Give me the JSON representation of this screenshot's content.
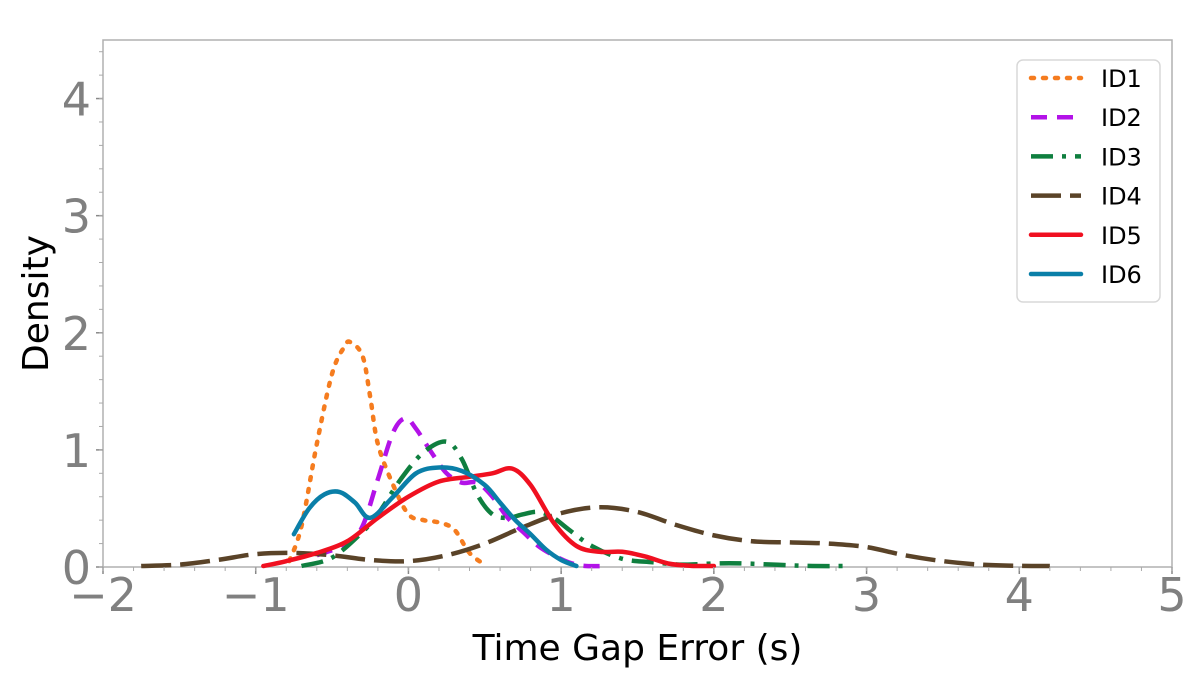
{
  "chart_data": {
    "type": "line",
    "title": "",
    "xlabel": "Time Gap Error (s)",
    "ylabel": "Density",
    "xlim": [
      -2,
      5
    ],
    "ylim": [
      0,
      4.5
    ],
    "xticks": [
      -2,
      -1,
      0,
      1,
      2,
      3,
      4,
      5
    ],
    "yticks": [
      0,
      1,
      2,
      3,
      4
    ],
    "xtick_labels": [
      "−2",
      "−1",
      "0",
      "1",
      "2",
      "3",
      "4",
      "5"
    ],
    "ytick_labels": [
      "0",
      "1",
      "2",
      "3",
      "4"
    ],
    "grid": false,
    "legend_position": "top-right",
    "series": [
      {
        "name": "ID1",
        "color": "#f57c1f",
        "style": "dotted",
        "x": [
          -0.78,
          -0.7,
          -0.6,
          -0.5,
          -0.42,
          -0.38,
          -0.3,
          -0.25,
          -0.2,
          -0.1,
          0.0,
          0.1,
          0.2,
          0.3,
          0.4,
          0.5
        ],
        "y": [
          0.05,
          0.35,
          1.05,
          1.65,
          1.88,
          1.92,
          1.8,
          1.45,
          1.05,
          0.7,
          0.45,
          0.4,
          0.38,
          0.32,
          0.12,
          0.02
        ]
      },
      {
        "name": "ID2",
        "color": "#b312e8",
        "style": "dashed",
        "x": [
          -0.6,
          -0.4,
          -0.3,
          -0.2,
          -0.1,
          -0.02,
          0.05,
          0.15,
          0.25,
          0.35,
          0.45,
          0.55,
          0.65,
          0.75,
          0.85,
          0.95,
          1.05,
          1.15,
          1.3
        ],
        "y": [
          0.1,
          0.2,
          0.35,
          0.75,
          1.15,
          1.27,
          1.18,
          0.98,
          0.8,
          0.72,
          0.72,
          0.6,
          0.42,
          0.3,
          0.18,
          0.1,
          0.04,
          0.01,
          0.0
        ]
      },
      {
        "name": "ID3",
        "color": "#0f7f3f",
        "style": "dashdot",
        "x": [
          -0.7,
          -0.5,
          -0.3,
          -0.2,
          -0.05,
          0.1,
          0.25,
          0.35,
          0.45,
          0.55,
          0.65,
          0.75,
          0.85,
          0.95,
          1.05,
          1.2,
          1.4,
          1.6,
          1.8,
          2.0,
          2.2,
          2.6,
          2.9
        ],
        "y": [
          0.0,
          0.08,
          0.3,
          0.45,
          0.75,
          0.98,
          1.07,
          0.92,
          0.62,
          0.45,
          0.42,
          0.45,
          0.47,
          0.42,
          0.32,
          0.18,
          0.07,
          0.04,
          0.02,
          0.03,
          0.03,
          0.01,
          0.0
        ]
      },
      {
        "name": "ID4",
        "color": "#5a4328",
        "style": "longdash",
        "x": [
          -1.75,
          -1.5,
          -1.25,
          -1.0,
          -0.75,
          -0.5,
          -0.25,
          0.0,
          0.25,
          0.5,
          0.75,
          1.0,
          1.25,
          1.5,
          1.75,
          2.0,
          2.25,
          2.5,
          2.75,
          3.0,
          3.25,
          3.5,
          3.75,
          4.0,
          4.2
        ],
        "y": [
          0.0,
          0.02,
          0.06,
          0.11,
          0.12,
          0.1,
          0.06,
          0.05,
          0.1,
          0.2,
          0.34,
          0.46,
          0.51,
          0.47,
          0.36,
          0.27,
          0.22,
          0.21,
          0.2,
          0.17,
          0.1,
          0.05,
          0.02,
          0.01,
          0.0
        ]
      },
      {
        "name": "ID5",
        "color": "#f01020",
        "style": "solid",
        "x": [
          -0.95,
          -0.8,
          -0.6,
          -0.4,
          -0.2,
          0.0,
          0.2,
          0.4,
          0.55,
          0.68,
          0.8,
          0.95,
          1.1,
          1.25,
          1.4,
          1.55,
          1.7,
          1.85,
          2.0
        ],
        "y": [
          0.0,
          0.05,
          0.12,
          0.22,
          0.42,
          0.6,
          0.73,
          0.77,
          0.8,
          0.84,
          0.7,
          0.38,
          0.18,
          0.13,
          0.13,
          0.09,
          0.03,
          0.01,
          0.0
        ]
      },
      {
        "name": "ID6",
        "color": "#0a7fa8",
        "style": "solid",
        "x": [
          -0.75,
          -0.65,
          -0.55,
          -0.45,
          -0.35,
          -0.25,
          -0.1,
          0.05,
          0.2,
          0.35,
          0.5,
          0.6,
          0.7,
          0.8,
          0.9,
          1.0,
          1.1
        ],
        "y": [
          0.28,
          0.5,
          0.62,
          0.64,
          0.55,
          0.42,
          0.6,
          0.8,
          0.85,
          0.82,
          0.7,
          0.55,
          0.4,
          0.28,
          0.15,
          0.06,
          0.0
        ]
      }
    ]
  }
}
